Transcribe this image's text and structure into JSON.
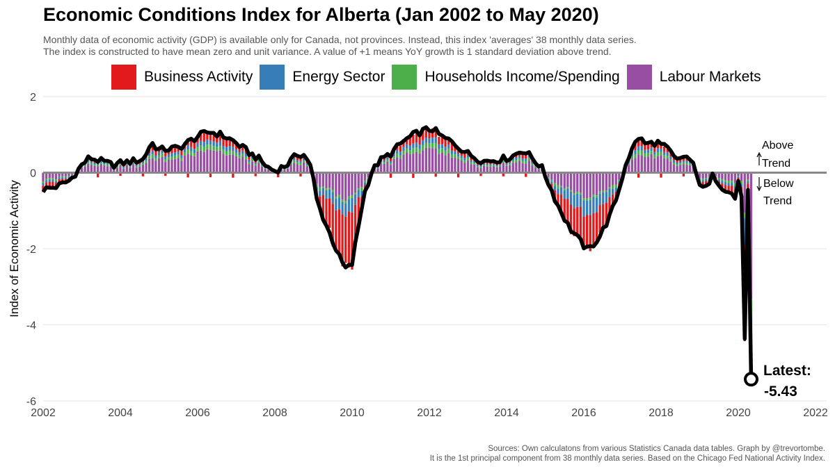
{
  "header": {
    "title": "Economic Conditions Index for Alberta (Jan 2002 to May 2020)",
    "subtitle_line1": "Monthly data of economic activity (GDP) is available only for Canada, not provinces. Instead, this index 'averages' 38 monthly data series.",
    "subtitle_line2": "The index is constructed to have mean zero and unit variance. A value of +1 means YoY growth is 1 standard deviation above trend."
  },
  "legend": [
    {
      "label": "Business Activity",
      "color": "#e31a1c"
    },
    {
      "label": "Energy Sector",
      "color": "#377eb8"
    },
    {
      "label": "Households Income/Spending",
      "color": "#4daf4a"
    },
    {
      "label": "Labour Markets",
      "color": "#984ea3"
    }
  ],
  "annotations": {
    "above": "Above",
    "above_trend": "Trend",
    "below": "Below",
    "below_trend": "Trend",
    "latest_label": "Latest:",
    "latest_value": "-5.43"
  },
  "footer": {
    "source_line1": "Sources: Own calculatons from various Statistics Canada data tables. Graph by @trevortombe.",
    "source_line2": "It is the 1st principal component from 38 monthly data series. Based on the Chicago Fed National Activity Index."
  },
  "chart_data": {
    "type": "bar",
    "stacked": true,
    "title": "Economic Conditions Index for Alberta (Jan 2002 to May 2020)",
    "ylabel": "Index of Economic Activity",
    "xlabel": "",
    "ylim": [
      -6,
      2
    ],
    "yticks": [
      "2",
      "0",
      "-2",
      "-4",
      "-6"
    ],
    "xlim": [
      2002,
      2022
    ],
    "xticks": [
      "2002",
      "2004",
      "2006",
      "2008",
      "2010",
      "2012",
      "2014",
      "2016",
      "2018",
      "2020",
      "2022"
    ],
    "grid": true,
    "legend_position": "top",
    "total_line_anchors": [
      [
        2002.0,
        -0.45
      ],
      [
        2002.4,
        -0.35
      ],
      [
        2002.7,
        -0.2
      ],
      [
        2003.0,
        0.2
      ],
      [
        2003.2,
        0.4
      ],
      [
        2003.5,
        0.3
      ],
      [
        2003.8,
        0.2
      ],
      [
        2004.0,
        0.25
      ],
      [
        2004.3,
        0.3
      ],
      [
        2004.6,
        0.35
      ],
      [
        2004.8,
        0.8
      ],
      [
        2005.0,
        0.6
      ],
      [
        2005.5,
        0.65
      ],
      [
        2006.0,
        0.95
      ],
      [
        2006.3,
        1.08
      ],
      [
        2006.6,
        1.0
      ],
      [
        2006.9,
        0.85
      ],
      [
        2007.3,
        0.55
      ],
      [
        2007.6,
        0.35
      ],
      [
        2007.8,
        0.15
      ],
      [
        2008.0,
        0.05
      ],
      [
        2008.3,
        0.2
      ],
      [
        2008.6,
        0.5
      ],
      [
        2008.8,
        0.45
      ],
      [
        2008.95,
        0.1
      ],
      [
        2009.1,
        -0.8
      ],
      [
        2009.3,
        -1.3
      ],
      [
        2009.5,
        -1.8
      ],
      [
        2009.7,
        -2.3
      ],
      [
        2009.85,
        -2.55
      ],
      [
        2010.0,
        -2.4
      ],
      [
        2010.15,
        -1.5
      ],
      [
        2010.3,
        -0.6
      ],
      [
        2010.5,
        0.0
      ],
      [
        2010.7,
        0.3
      ],
      [
        2011.0,
        0.5
      ],
      [
        2011.3,
        0.8
      ],
      [
        2011.6,
        1.0
      ],
      [
        2011.9,
        1.12
      ],
      [
        2012.1,
        1.15
      ],
      [
        2012.3,
        0.95
      ],
      [
        2012.6,
        0.8
      ],
      [
        2013.0,
        0.5
      ],
      [
        2013.4,
        0.3
      ],
      [
        2013.8,
        0.35
      ],
      [
        2014.1,
        0.4
      ],
      [
        2014.4,
        0.6
      ],
      [
        2014.6,
        0.45
      ],
      [
        2014.9,
        0.15
      ],
      [
        2015.1,
        -0.3
      ],
      [
        2015.3,
        -0.8
      ],
      [
        2015.6,
        -1.4
      ],
      [
        2015.9,
        -1.8
      ],
      [
        2016.1,
        -2.05
      ],
      [
        2016.4,
        -1.7
      ],
      [
        2016.7,
        -1.1
      ],
      [
        2016.9,
        -0.5
      ],
      [
        2017.1,
        0.3
      ],
      [
        2017.3,
        0.7
      ],
      [
        2017.4,
        0.95
      ],
      [
        2017.6,
        0.75
      ],
      [
        2017.9,
        0.8
      ],
      [
        2018.2,
        0.6
      ],
      [
        2018.4,
        0.3
      ],
      [
        2018.6,
        0.45
      ],
      [
        2018.8,
        0.3
      ],
      [
        2018.95,
        -0.2
      ],
      [
        2019.2,
        -0.45
      ],
      [
        2019.35,
        -0.05
      ],
      [
        2019.55,
        -0.35
      ],
      [
        2019.8,
        -0.5
      ],
      [
        2019.95,
        -0.75
      ],
      [
        2020.0,
        -0.2
      ],
      [
        2020.08,
        -0.45
      ],
      [
        2020.17,
        -4.6
      ],
      [
        2020.33,
        -5.43
      ]
    ],
    "components": [
      "Business Activity",
      "Energy Sector",
      "Households Income/Spending",
      "Labour Markets"
    ],
    "latest": {
      "date": "May 2020",
      "value": -5.43
    },
    "region_labels": [
      "Above Trend",
      "Below Trend"
    ]
  }
}
